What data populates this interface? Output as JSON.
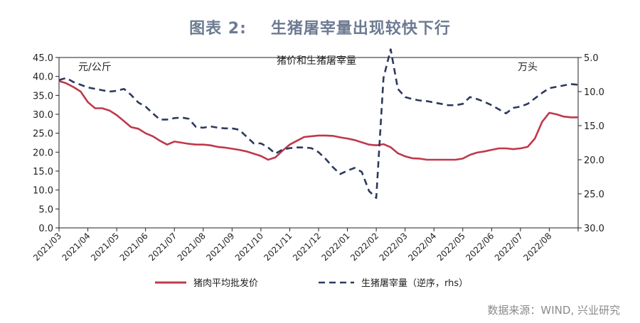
{
  "title_prefix": "图表 2:",
  "title_text": "生猪屠宰量出现较快下行",
  "source": "数据来源：WIND, 兴业研究",
  "chart_data": {
    "type": "line",
    "title": "图表 2: 生猪屠宰量出现较快下行",
    "center_label": "猪价和生猪屠宰量",
    "left_unit": "元/公斤",
    "right_unit": "万头",
    "x_labels": [
      "2021/03",
      "2021/04",
      "2021/05",
      "2021/06",
      "2021/07",
      "2021/08",
      "2021/09",
      "2021/10",
      "2021/11",
      "2021/12",
      "2022/01",
      "2022/02",
      "2022/03",
      "2022/04",
      "2022/05",
      "2022/06",
      "2022/07",
      "2022/08"
    ],
    "y_left": {
      "min": 0,
      "max": 45,
      "step": 5,
      "ticks": [
        "0.0",
        "5.0",
        "10.0",
        "15.0",
        "20.0",
        "25.0",
        "30.0",
        "35.0",
        "40.0",
        "45.0"
      ]
    },
    "y_right": {
      "min": 5,
      "max": 30,
      "step": 5,
      "inverted": true,
      "ticks": [
        "5.0",
        "10.0",
        "15.0",
        "20.0",
        "25.0",
        "30.0"
      ]
    },
    "series": [
      {
        "name": "猪肉平均批发价",
        "axis": "left",
        "color": "#c0384b",
        "style": "solid",
        "points": [
          [
            0,
            38.8
          ],
          [
            0.25,
            38.2
          ],
          [
            0.5,
            37.2
          ],
          [
            0.75,
            36
          ],
          [
            1,
            33.2
          ],
          [
            1.25,
            31.6
          ],
          [
            1.5,
            31.6
          ],
          [
            1.75,
            31
          ],
          [
            2,
            29.8
          ],
          [
            2.25,
            28.2
          ],
          [
            2.5,
            26.6
          ],
          [
            2.75,
            26.2
          ],
          [
            3,
            25
          ],
          [
            3.25,
            24.2
          ],
          [
            3.5,
            23
          ],
          [
            3.75,
            22
          ],
          [
            4,
            22.8
          ],
          [
            4.25,
            22.5
          ],
          [
            4.5,
            22.2
          ],
          [
            4.75,
            22
          ],
          [
            5,
            22
          ],
          [
            5.25,
            21.8
          ],
          [
            5.5,
            21.4
          ],
          [
            5.75,
            21.2
          ],
          [
            6,
            20.9
          ],
          [
            6.25,
            20.6
          ],
          [
            6.5,
            20.2
          ],
          [
            6.75,
            19.6
          ],
          [
            7,
            19
          ],
          [
            7.25,
            18
          ],
          [
            7.5,
            18.6
          ],
          [
            7.75,
            20.4
          ],
          [
            8,
            22
          ],
          [
            8.25,
            23
          ],
          [
            8.5,
            24
          ],
          [
            8.75,
            24.2
          ],
          [
            9,
            24.4
          ],
          [
            9.25,
            24.4
          ],
          [
            9.5,
            24.3
          ],
          [
            9.75,
            23.9
          ],
          [
            10,
            23.6
          ],
          [
            10.25,
            23.2
          ],
          [
            10.5,
            22.6
          ],
          [
            10.75,
            22
          ],
          [
            11,
            21.8
          ],
          [
            11.25,
            22.1
          ],
          [
            11.5,
            21.3
          ],
          [
            11.75,
            19.7
          ],
          [
            12,
            18.9
          ],
          [
            12.25,
            18.4
          ],
          [
            12.5,
            18.3
          ],
          [
            12.75,
            18
          ],
          [
            13,
            18
          ],
          [
            13.25,
            18
          ],
          [
            13.5,
            18
          ],
          [
            13.75,
            18
          ],
          [
            14,
            18.3
          ],
          [
            14.25,
            19.3
          ],
          [
            14.5,
            19.9
          ],
          [
            14.75,
            20.2
          ],
          [
            15,
            20.6
          ],
          [
            15.25,
            21
          ],
          [
            15.5,
            21
          ],
          [
            15.75,
            20.8
          ],
          [
            16,
            21
          ],
          [
            16.25,
            21.4
          ],
          [
            16.5,
            23.6
          ],
          [
            16.75,
            28
          ],
          [
            17,
            30.4
          ],
          [
            17.25,
            30
          ],
          [
            17.5,
            29.4
          ],
          [
            17.75,
            29.2
          ],
          [
            18,
            29.2
          ]
        ]
      },
      {
        "name": "生猪屠宰量（逆序，rhs）",
        "axis": "right",
        "color": "#2d3a5e",
        "style": "dashed",
        "points": [
          [
            0,
            8.3
          ],
          [
            0.25,
            8
          ],
          [
            0.5,
            8.6
          ],
          [
            0.75,
            9
          ],
          [
            1,
            9.4
          ],
          [
            1.25,
            9.6
          ],
          [
            1.5,
            9.8
          ],
          [
            1.75,
            10
          ],
          [
            2,
            9.9
          ],
          [
            2.25,
            9.6
          ],
          [
            2.5,
            10.5
          ],
          [
            2.75,
            11.6
          ],
          [
            3,
            12.2
          ],
          [
            3.25,
            13.2
          ],
          [
            3.5,
            14.1
          ],
          [
            3.75,
            14.1
          ],
          [
            4,
            13.9
          ],
          [
            4.25,
            13.8
          ],
          [
            4.5,
            14
          ],
          [
            4.75,
            15.2
          ],
          [
            5,
            15.3
          ],
          [
            5.25,
            15.1
          ],
          [
            5.5,
            15.3
          ],
          [
            5.75,
            15.4
          ],
          [
            6,
            15.4
          ],
          [
            6.25,
            15.6
          ],
          [
            6.5,
            16.6
          ],
          [
            6.75,
            17.6
          ],
          [
            7,
            17.6
          ],
          [
            7.25,
            18.2
          ],
          [
            7.5,
            19.1
          ],
          [
            7.75,
            18.5
          ],
          [
            8,
            18.3
          ],
          [
            8.25,
            18.2
          ],
          [
            8.5,
            18.2
          ],
          [
            8.75,
            18.3
          ],
          [
            9,
            18.9
          ],
          [
            9.25,
            19.9
          ],
          [
            9.5,
            21.1
          ],
          [
            9.75,
            22.1
          ],
          [
            10,
            21.6
          ],
          [
            10.25,
            21.2
          ],
          [
            10.5,
            21.8
          ],
          [
            10.75,
            24.6
          ],
          [
            11,
            25.6
          ],
          [
            11.25,
            8
          ],
          [
            11.5,
            3.8
          ],
          [
            11.75,
            9.6
          ],
          [
            12,
            10.8
          ],
          [
            12.25,
            11.1
          ],
          [
            12.5,
            11.3
          ],
          [
            12.75,
            11.4
          ],
          [
            13,
            11.6
          ],
          [
            13.25,
            11.8
          ],
          [
            13.5,
            12
          ],
          [
            13.75,
            12
          ],
          [
            14,
            11.8
          ],
          [
            14.25,
            10.8
          ],
          [
            14.5,
            11.1
          ],
          [
            14.75,
            11.5
          ],
          [
            15,
            12
          ],
          [
            15.25,
            12.6
          ],
          [
            15.5,
            13.2
          ],
          [
            15.75,
            12.4
          ],
          [
            16,
            12.2
          ],
          [
            16.25,
            11.8
          ],
          [
            16.5,
            11
          ],
          [
            16.75,
            10.2
          ],
          [
            17,
            9.5
          ],
          [
            17.25,
            9.3
          ],
          [
            17.5,
            9.1
          ],
          [
            17.75,
            8.9
          ],
          [
            18,
            9
          ]
        ]
      }
    ],
    "legend": [
      "猪肉平均批发价",
      "生猪屠宰量（逆序，rhs）"
    ],
    "legend_position": "bottom"
  }
}
